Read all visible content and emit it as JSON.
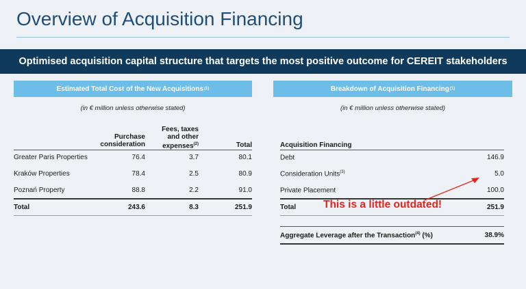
{
  "page": {
    "title": "Overview of Acquisition Financing",
    "banner": "Optimised acquisition capital structure that targets the most positive outcome for CEREIT stakeholders"
  },
  "left_panel": {
    "heading": "Estimated Total Cost of the New Acquisitions",
    "heading_footnote": "(1)",
    "note": "(in € million unless otherwise stated)",
    "columns": {
      "purchase_line1": "Purchase",
      "purchase_line2": "consideration",
      "fees_line1": "Fees, taxes",
      "fees_line2": "and other",
      "fees_line3": "expenses",
      "fees_footnote": "(2)",
      "total": "Total"
    },
    "rows": [
      {
        "name": "Greater Paris Properties",
        "purchase": "76.4",
        "fees": "3.7",
        "total": "80.1"
      },
      {
        "name": "Kraków Properties",
        "purchase": "78.4",
        "fees": "2.5",
        "total": "80.9"
      },
      {
        "name": "Poznań Property",
        "purchase": "88.8",
        "fees": "2.2",
        "total": "91.0"
      }
    ],
    "total_row": {
      "name": "Total",
      "purchase": "243.6",
      "fees": "8.3",
      "total": "251.9"
    }
  },
  "right_panel": {
    "heading": "Breakdown of Acquisition Financing",
    "heading_footnote": "(1)",
    "note": "(in € million unless otherwise stated)",
    "section_label": "Acquisition Financing",
    "rows": [
      {
        "name": "Debt",
        "footnote": "",
        "value": "146.9"
      },
      {
        "name": "Consideration Units",
        "footnote": "(3)",
        "value": "5.0"
      },
      {
        "name": "Private Placement",
        "footnote": "",
        "value": "100.0"
      }
    ],
    "total_row": {
      "name": "Total",
      "value": "251.9"
    },
    "leverage": {
      "label": "Aggregate Leverage after the Transaction",
      "footnote": "(4)",
      "unit": " (%)",
      "value": "38.9%"
    }
  },
  "annotation": {
    "text": "This is a little outdated!",
    "color": "#e8231a"
  },
  "colors": {
    "title": "#1f4e79",
    "banner_bg": "#0f3a5c",
    "panel_header_bg": "#6cbde8",
    "background": "#eef1f5"
  }
}
